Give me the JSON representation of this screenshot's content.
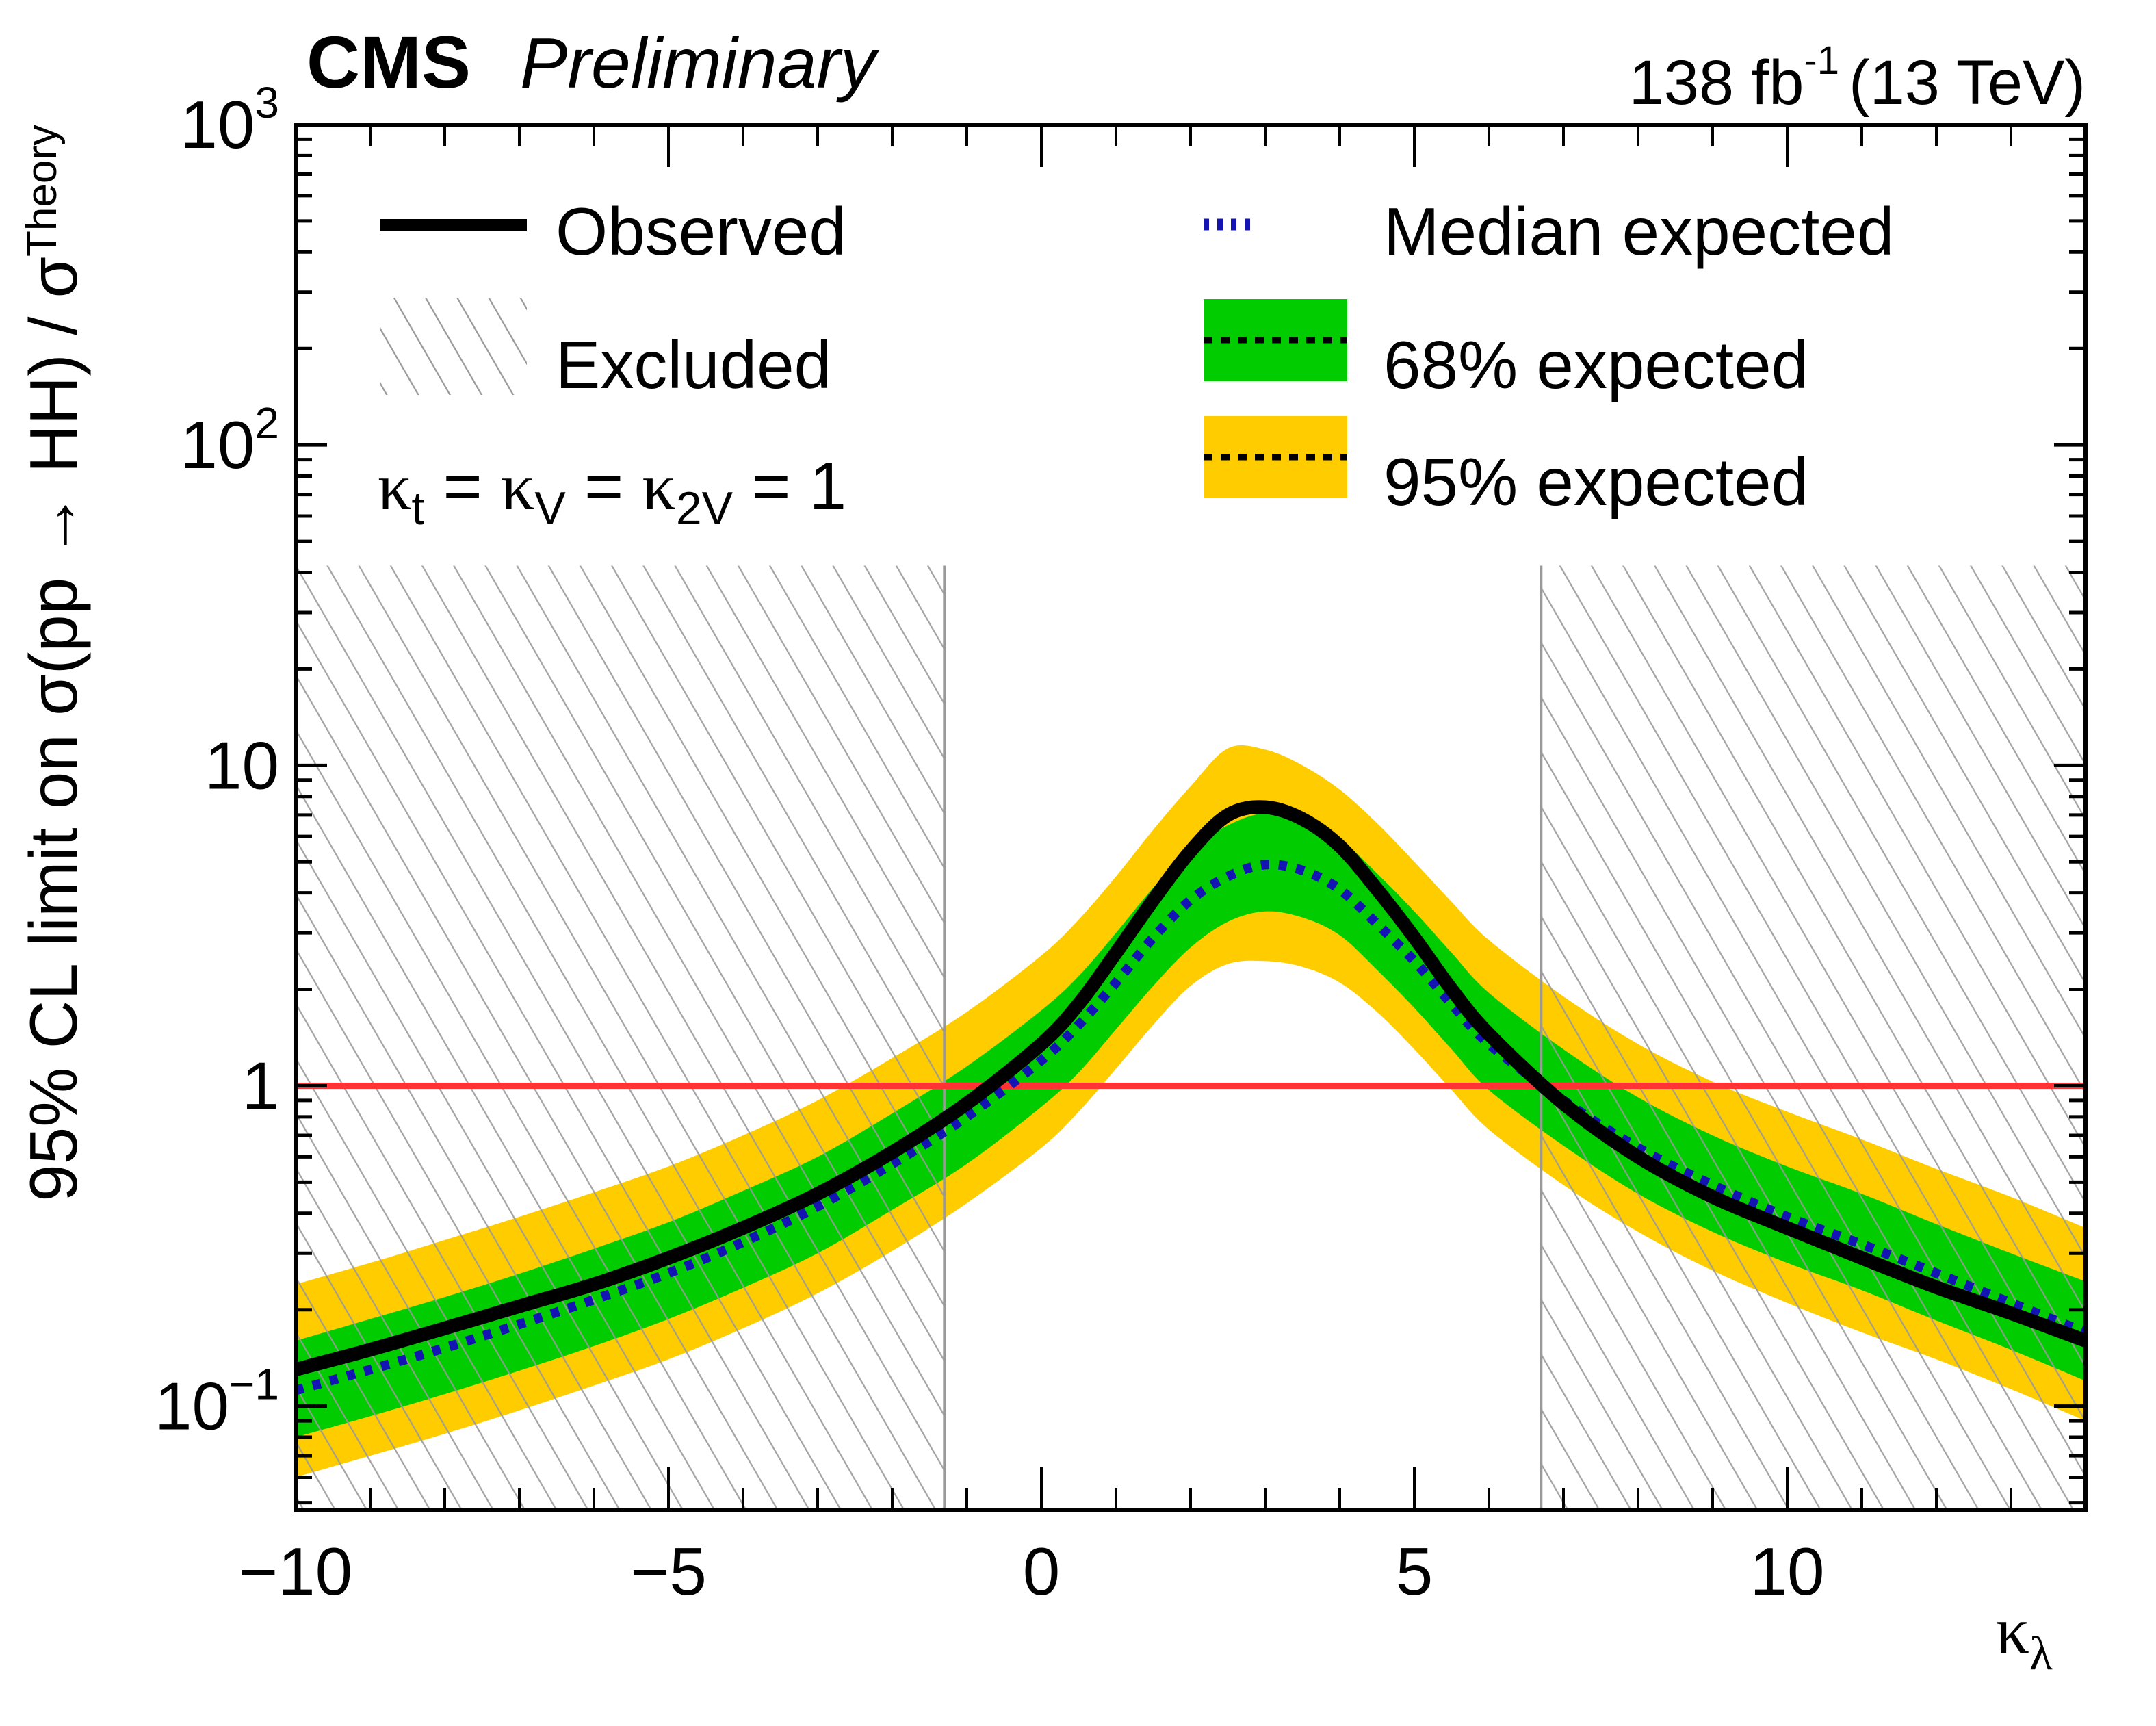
{
  "header": {
    "experiment": "CMS",
    "status": "Preliminary",
    "lumi": "138 fb",
    "lumi_exp": "-1",
    "energy": "(13 TeV)"
  },
  "colors": {
    "observed": "#000000",
    "median": "#1414b4",
    "band68": "#00cc00",
    "band95": "#ffcc00",
    "excluded_hatch": "#999999",
    "theory_line": "#ff3333"
  },
  "chart_data": {
    "type": "line",
    "title": "",
    "xlabel": "κλ",
    "xlabel_main": "κ",
    "xlabel_sub": "λ",
    "ylabel": "95% CL limit on σ(pp → HH) / σTheory",
    "ylabel_main": "95% CL limit on σ(pp → HH) / σ",
    "ylabel_sub": "Theory",
    "xlim": [
      -10,
      14
    ],
    "ylim": [
      0.0475,
      1000
    ],
    "yscale": "log",
    "x_ticks": [
      -10,
      -5,
      0,
      5,
      10
    ],
    "x_tick_labels": [
      "−10",
      "−5",
      "0",
      "5",
      "10"
    ],
    "y_ticks": [
      {
        "value": 0.1,
        "base": "10",
        "exp": "−1"
      },
      {
        "value": 1,
        "base": "1",
        "exp": ""
      },
      {
        "value": 10,
        "base": "10",
        "exp": ""
      },
      {
        "value": 100,
        "base": "10",
        "exp": "2"
      },
      {
        "value": 1000,
        "base": "10",
        "exp": "3"
      }
    ],
    "annotation": {
      "k1": "κ",
      "s1": "t",
      "eq1": " = ",
      "k2": "κ",
      "s2": "V",
      "eq2": " = ",
      "k3": "κ",
      "s3": "2V",
      "eq3": " = 1"
    },
    "legend": {
      "placement": "top",
      "entries": [
        {
          "key": "observed",
          "label": "Observed"
        },
        {
          "key": "median",
          "label": "Median expected"
        },
        {
          "key": "excluded",
          "label": "Excluded"
        },
        {
          "key": "band68",
          "label": "68% expected"
        },
        {
          "key": "band95",
          "label": "95% expected"
        }
      ]
    },
    "theory_line": 1,
    "excluded_regions": [
      {
        "from": -10,
        "to": -1.3,
        "ymax": 42
      },
      {
        "from": 6.7,
        "to": 14,
        "ymax": 42
      }
    ],
    "x": [
      -10,
      -9,
      -8,
      -7,
      -6,
      -5,
      -4,
      -3,
      -2,
      -1,
      0,
      0.5,
      1,
      1.5,
      2,
      2.5,
      3,
      3.5,
      4,
      4.5,
      5,
      5.5,
      6,
      7,
      8,
      9,
      10,
      11,
      12,
      13,
      14
    ],
    "series": [
      {
        "name": "Observed",
        "values": [
          0.13,
          0.15,
          0.175,
          0.205,
          0.24,
          0.29,
          0.36,
          0.46,
          0.62,
          0.88,
          1.35,
          1.8,
          2.6,
          3.8,
          5.4,
          7.0,
          7.4,
          6.8,
          5.6,
          4.1,
          2.9,
          2.0,
          1.45,
          0.88,
          0.6,
          0.45,
          0.36,
          0.29,
          0.235,
          0.195,
          0.16
        ]
      },
      {
        "name": "Median expected",
        "values": [
          0.112,
          0.13,
          0.152,
          0.18,
          0.215,
          0.26,
          0.325,
          0.42,
          0.57,
          0.8,
          1.2,
          1.55,
          2.1,
          2.9,
          3.8,
          4.5,
          4.9,
          4.7,
          4.1,
          3.2,
          2.45,
          1.8,
          1.35,
          0.9,
          0.64,
          0.49,
          0.39,
          0.32,
          0.26,
          0.21,
          0.17
        ]
      },
      {
        "name": "68% expected low",
        "values": [
          0.08,
          0.093,
          0.109,
          0.129,
          0.154,
          0.187,
          0.234,
          0.3,
          0.41,
          0.57,
          0.86,
          1.1,
          1.5,
          2.05,
          2.7,
          3.25,
          3.5,
          3.35,
          2.95,
          2.3,
          1.75,
          1.3,
          0.97,
          0.65,
          0.46,
          0.35,
          0.28,
          0.23,
          0.185,
          0.15,
          0.12
        ]
      },
      {
        "name": "68% expected high",
        "values": [
          0.16,
          0.187,
          0.219,
          0.259,
          0.31,
          0.375,
          0.47,
          0.6,
          0.82,
          1.15,
          1.72,
          2.2,
          3.0,
          4.15,
          5.45,
          6.5,
          7.1,
          6.8,
          5.9,
          4.6,
          3.5,
          2.6,
          1.95,
          1.3,
          0.92,
          0.7,
          0.56,
          0.46,
          0.37,
          0.3,
          0.245
        ]
      },
      {
        "name": "95% expected low",
        "values": [
          0.06,
          0.07,
          0.082,
          0.097,
          0.116,
          0.14,
          0.175,
          0.225,
          0.305,
          0.43,
          0.64,
          0.83,
          1.13,
          1.55,
          2.05,
          2.4,
          2.45,
          2.35,
          2.1,
          1.7,
          1.3,
          0.97,
          0.73,
          0.49,
          0.35,
          0.265,
          0.21,
          0.17,
          0.14,
          0.113,
          0.09
        ]
      },
      {
        "name": "95% expected high",
        "values": [
          0.24,
          0.28,
          0.33,
          0.39,
          0.465,
          0.56,
          0.7,
          0.9,
          1.22,
          1.7,
          2.55,
          3.3,
          4.5,
          6.3,
          8.6,
          11.3,
          11.2,
          10.0,
          8.4,
          6.6,
          5.0,
          3.75,
          2.85,
          1.9,
          1.35,
          1.03,
          0.83,
          0.68,
          0.55,
          0.45,
          0.36
        ]
      }
    ]
  }
}
